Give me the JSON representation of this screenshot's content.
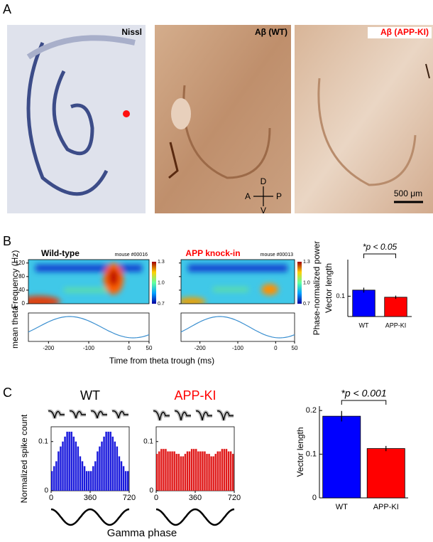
{
  "panel_labels": [
    "A",
    "B",
    "C"
  ],
  "panel_a": {
    "images": [
      {
        "label": "Nissl"
      },
      {
        "label": "Aβ (WT)"
      },
      {
        "label": "Aβ (APP-KI)"
      }
    ],
    "compass": {
      "up": "D",
      "down": "V",
      "left": "A",
      "right": "P"
    },
    "scale_bar": "500 μm"
  },
  "panel_b": {
    "heatmaps": [
      {
        "title": "Wild-type",
        "mouse": "mouse #00016",
        "title_color": "#000000"
      },
      {
        "title": "APP knock-in",
        "mouse": "mouse #00013",
        "title_color": "#ff0000"
      }
    ],
    "y_label": "Frequency (Hz)",
    "heat_ylim": [
      0,
      130
    ],
    "heat_yticks": [
      0,
      40,
      80,
      120
    ],
    "colorbar_lim": [
      0.7,
      1.3
    ],
    "colorbar_ticks": [
      1.3,
      {
        "value": 1.0,
        "label": "1.0"
      },
      0.7
    ],
    "colorbar_label": "Phase-normalized power",
    "trace_label": "mean theta",
    "xlim": [
      -250,
      50
    ],
    "xticks": [
      -200,
      -100,
      0,
      50
    ],
    "x_label": "Time from theta trough (ms)",
    "bar_chart": {
      "type": "bar",
      "y_label": "Vector length",
      "categories": [
        "WT",
        "APP-KI"
      ],
      "values": [
        0.13,
        0.095
      ],
      "errors": [
        0.012,
        0.008
      ],
      "colors": [
        "#0000ff",
        "#ff0000"
      ],
      "ylim": [
        0,
        0.28
      ],
      "yticks": [
        0.1
      ],
      "annotation": "*p < 0.05"
    }
  },
  "panel_c": {
    "histograms": [
      {
        "title": "WT",
        "title_color": "#000000",
        "color": "#1a1adc",
        "counts": [
          0.04,
          0.05,
          0.06,
          0.08,
          0.09,
          0.1,
          0.11,
          0.12,
          0.12,
          0.12,
          0.11,
          0.1,
          0.09,
          0.07,
          0.06,
          0.05,
          0.04,
          0.04,
          0.04,
          0.05,
          0.06,
          0.08,
          0.09,
          0.1,
          0.11,
          0.12,
          0.12,
          0.12,
          0.11,
          0.1,
          0.09,
          0.07,
          0.06,
          0.05,
          0.04,
          0.04
        ]
      },
      {
        "title": "APP-KI",
        "title_color": "#ff0000",
        "color": "#e01a1a",
        "counts": [
          0.075,
          0.08,
          0.085,
          0.085,
          0.085,
          0.08,
          0.08,
          0.08,
          0.08,
          0.075,
          0.075,
          0.07,
          0.07,
          0.075,
          0.08,
          0.08,
          0.085,
          0.085,
          0.085,
          0.08,
          0.08,
          0.08,
          0.08,
          0.075,
          0.075,
          0.07,
          0.07,
          0.075,
          0.08,
          0.08,
          0.085,
          0.085,
          0.085,
          0.08,
          0.08,
          0.075
        ]
      }
    ],
    "bins": [
      0,
      20,
      40,
      60,
      80,
      100,
      120,
      140,
      160,
      180,
      200,
      220,
      240,
      260,
      280,
      300,
      320,
      340,
      360,
      380,
      400,
      420,
      440,
      460,
      480,
      500,
      520,
      540,
      560,
      580,
      600,
      620,
      640,
      660,
      680,
      700,
      720
    ],
    "xlim": [
      0,
      720
    ],
    "xticks": [
      0,
      360,
      720
    ],
    "ylim": [
      0,
      0.13
    ],
    "yticks": [
      0,
      0.1
    ],
    "y_label": "Normalized spike count",
    "x_label": "Gamma phase",
    "bar_chart": {
      "type": "bar",
      "y_label": "Vector length",
      "categories": [
        "WT",
        "APP-KI"
      ],
      "values": [
        0.187,
        0.113
      ],
      "errors": [
        0.012,
        0.006
      ],
      "colors": [
        "#0000ff",
        "#ff0000"
      ],
      "ylim": [
        0,
        0.21
      ],
      "yticks": [
        0,
        0.1,
        0.2
      ],
      "annotation": "*p < 0.001"
    }
  }
}
